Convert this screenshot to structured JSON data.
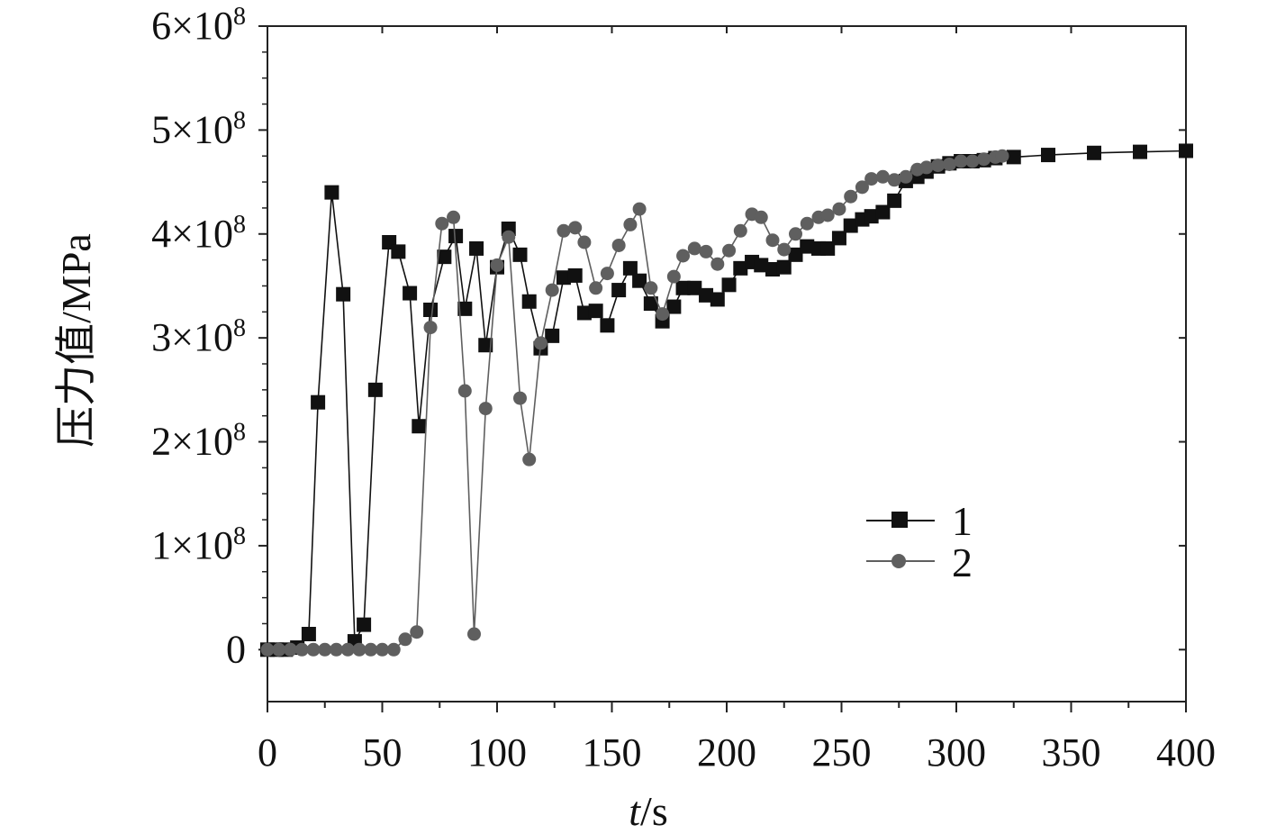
{
  "chart_data": {
    "type": "line",
    "xlabel_var": "t",
    "xlabel_unit": "/s",
    "ylabel": "压力值/MPa",
    "xlim": [
      0,
      400
    ],
    "ylim": [
      -50000000,
      600000000
    ],
    "x_ticks": [
      0,
      50,
      100,
      150,
      200,
      250,
      300,
      350,
      400
    ],
    "y_ticks": [
      {
        "value": 0,
        "mantissa": "0",
        "exp": ""
      },
      {
        "value": 100000000,
        "mantissa": "1×10",
        "exp": "8"
      },
      {
        "value": 200000000,
        "mantissa": "2×10",
        "exp": "8"
      },
      {
        "value": 300000000,
        "mantissa": "3×10",
        "exp": "8"
      },
      {
        "value": 400000000,
        "mantissa": "4×10",
        "exp": "8"
      },
      {
        "value": 500000000,
        "mantissa": "5×10",
        "exp": "8"
      },
      {
        "value": 600000000,
        "mantissa": "6×10",
        "exp": "8"
      }
    ],
    "legend_position": "lower-right",
    "series": [
      {
        "name": "1",
        "marker": "square",
        "color": "#111111",
        "points": [
          [
            0,
            0
          ],
          [
            4,
            0
          ],
          [
            8,
            0
          ],
          [
            13,
            2000000
          ],
          [
            18,
            15000000
          ],
          [
            22,
            238000000
          ],
          [
            28,
            440000000
          ],
          [
            33,
            342000000
          ],
          [
            38,
            8000000
          ],
          [
            42,
            24000000
          ],
          [
            47,
            250000000
          ],
          [
            53,
            392000000
          ],
          [
            57,
            383000000
          ],
          [
            62,
            343000000
          ],
          [
            66,
            215000000
          ],
          [
            71,
            327000000
          ],
          [
            77,
            378000000
          ],
          [
            82,
            398000000
          ],
          [
            86,
            328000000
          ],
          [
            91,
            386000000
          ],
          [
            95,
            293000000
          ],
          [
            100,
            368000000
          ],
          [
            105,
            405000000
          ],
          [
            110,
            380000000
          ],
          [
            114,
            335000000
          ],
          [
            119,
            290000000
          ],
          [
            124,
            302000000
          ],
          [
            129,
            358000000
          ],
          [
            134,
            360000000
          ],
          [
            138,
            324000000
          ],
          [
            143,
            326000000
          ],
          [
            148,
            312000000
          ],
          [
            153,
            346000000
          ],
          [
            158,
            367000000
          ],
          [
            162,
            355000000
          ],
          [
            167,
            333000000
          ],
          [
            172,
            316000000
          ],
          [
            177,
            330000000
          ],
          [
            181,
            348000000
          ],
          [
            186,
            348000000
          ],
          [
            191,
            341000000
          ],
          [
            196,
            337000000
          ],
          [
            201,
            351000000
          ],
          [
            206,
            367000000
          ],
          [
            211,
            373000000
          ],
          [
            215,
            370000000
          ],
          [
            220,
            366000000
          ],
          [
            225,
            368000000
          ],
          [
            230,
            380000000
          ],
          [
            235,
            388000000
          ],
          [
            240,
            386000000
          ],
          [
            244,
            386000000
          ],
          [
            249,
            396000000
          ],
          [
            254,
            408000000
          ],
          [
            259,
            414000000
          ],
          [
            263,
            417000000
          ],
          [
            268,
            421000000
          ],
          [
            273,
            432000000
          ],
          [
            278,
            451000000
          ],
          [
            283,
            455000000
          ],
          [
            287,
            460000000
          ],
          [
            292,
            465000000
          ],
          [
            297,
            468000000
          ],
          [
            302,
            470000000
          ],
          [
            307,
            470000000
          ],
          [
            312,
            471000000
          ],
          [
            317,
            473000000
          ],
          [
            325,
            474000000
          ],
          [
            340,
            476000000
          ],
          [
            360,
            478000000
          ],
          [
            380,
            479000000
          ],
          [
            400,
            480000000
          ]
        ]
      },
      {
        "name": "2",
        "marker": "circle",
        "color": "#5f5f5f",
        "points": [
          [
            0,
            0
          ],
          [
            5,
            0
          ],
          [
            10,
            0
          ],
          [
            15,
            0
          ],
          [
            20,
            0
          ],
          [
            25,
            0
          ],
          [
            30,
            0
          ],
          [
            35,
            0
          ],
          [
            40,
            0
          ],
          [
            45,
            0
          ],
          [
            50,
            0
          ],
          [
            55,
            0
          ],
          [
            60,
            10000000
          ],
          [
            65,
            17000000
          ],
          [
            71,
            310000000
          ],
          [
            76,
            410000000
          ],
          [
            81,
            416000000
          ],
          [
            86,
            249000000
          ],
          [
            90,
            15000000
          ],
          [
            95,
            232000000
          ],
          [
            100,
            370000000
          ],
          [
            105,
            397000000
          ],
          [
            110,
            242000000
          ],
          [
            114,
            183000000
          ],
          [
            119,
            295000000
          ],
          [
            124,
            346000000
          ],
          [
            129,
            403000000
          ],
          [
            134,
            406000000
          ],
          [
            138,
            392000000
          ],
          [
            143,
            348000000
          ],
          [
            148,
            362000000
          ],
          [
            153,
            389000000
          ],
          [
            158,
            409000000
          ],
          [
            162,
            424000000
          ],
          [
            167,
            348000000
          ],
          [
            172,
            323000000
          ],
          [
            177,
            359000000
          ],
          [
            181,
            379000000
          ],
          [
            186,
            386000000
          ],
          [
            191,
            383000000
          ],
          [
            196,
            371000000
          ],
          [
            201,
            384000000
          ],
          [
            206,
            403000000
          ],
          [
            211,
            419000000
          ],
          [
            215,
            416000000
          ],
          [
            220,
            394000000
          ],
          [
            225,
            385000000
          ],
          [
            230,
            400000000
          ],
          [
            235,
            410000000
          ],
          [
            240,
            416000000
          ],
          [
            244,
            418000000
          ],
          [
            249,
            424000000
          ],
          [
            254,
            436000000
          ],
          [
            259,
            445000000
          ],
          [
            263,
            453000000
          ],
          [
            268,
            455000000
          ],
          [
            273,
            452000000
          ],
          [
            278,
            455000000
          ],
          [
            283,
            462000000
          ],
          [
            287,
            464000000
          ],
          [
            292,
            466000000
          ],
          [
            297,
            467000000
          ],
          [
            302,
            470000000
          ],
          [
            307,
            470000000
          ],
          [
            312,
            472000000
          ],
          [
            317,
            474000000
          ],
          [
            320,
            475000000
          ]
        ]
      }
    ]
  }
}
